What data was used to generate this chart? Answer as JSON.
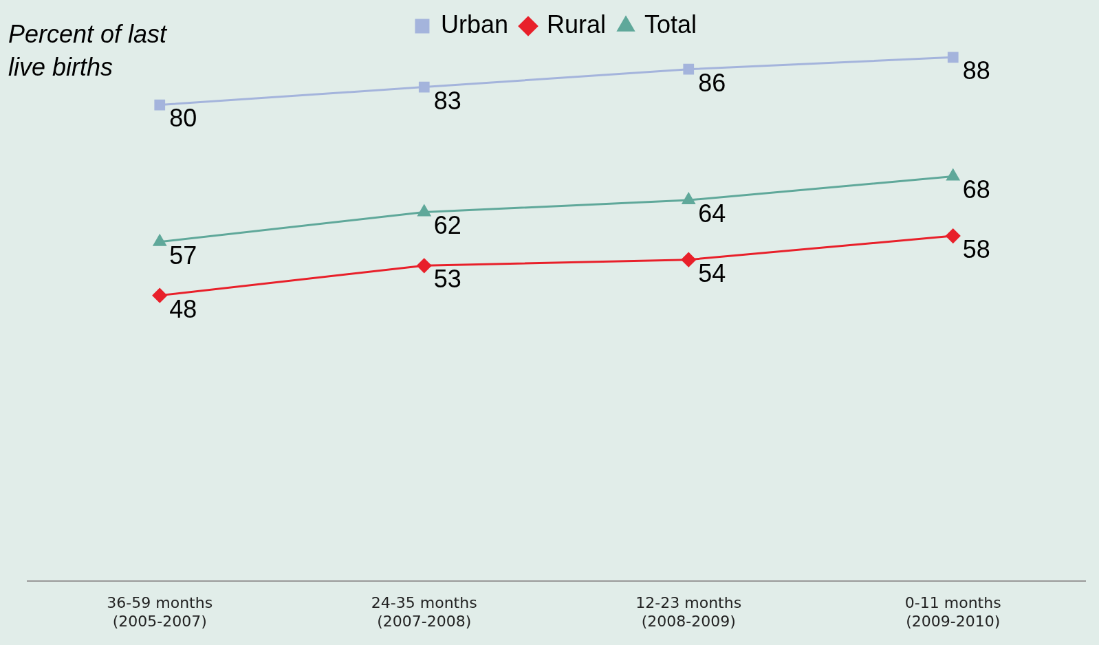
{
  "chart_data": {
    "type": "line",
    "ylabel": "Percent of last live births",
    "categories": [
      "36-59 months\n(2005-2007)",
      "24-35 months\n(2007-2008)",
      "12-23 months\n(2008-2009)",
      "0-11 months\n(2009-2010)"
    ],
    "series": [
      {
        "name": "Urban",
        "color": "#a4b4dc",
        "marker": "square",
        "values": [
          80,
          83,
          86,
          88
        ]
      },
      {
        "name": "Rural",
        "color": "#e8202a",
        "marker": "diamond",
        "values": [
          48,
          53,
          54,
          58
        ]
      },
      {
        "name": "Total",
        "color": "#5fa89a",
        "marker": "triangle",
        "values": [
          57,
          62,
          64,
          68
        ]
      }
    ],
    "tick_labels": "x",
    "grid": false,
    "legend": "top",
    "data_labels": true
  }
}
